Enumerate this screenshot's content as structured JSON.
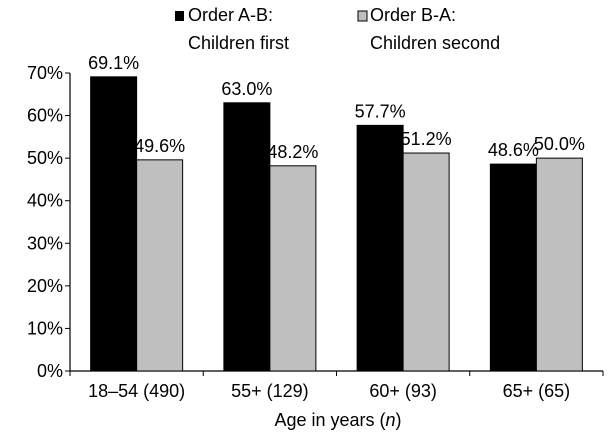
{
  "chart_data": {
    "type": "bar",
    "categories": [
      "18–54 (490)",
      "55+ (129)",
      "60+ (93)",
      "65+ (65)"
    ],
    "series": [
      {
        "name_line1": "Order A-B:",
        "name_line2": "Children first",
        "values": [
          69.1,
          63.0,
          57.7,
          48.6
        ],
        "labels": [
          "69.1%",
          "63.0%",
          "57.7%",
          "48.6%"
        ],
        "color": "#000000"
      },
      {
        "name_line1": "Order B-A:",
        "name_line2": "Children second",
        "values": [
          49.6,
          48.2,
          51.2,
          50.0
        ],
        "labels": [
          "49.6%",
          "48.2%",
          "51.2%",
          "50.0%"
        ],
        "color": "#bfbfbf"
      }
    ],
    "xlabel_prefix": "Age in years (",
    "xlabel_var": "n",
    "xlabel_suffix": ")",
    "ylabel": "",
    "ylim": [
      0,
      70
    ],
    "yticks": [
      "0%",
      "10%",
      "20%",
      "30%",
      "40%",
      "50%",
      "60%",
      "70%"
    ],
    "grid": false,
    "legend_position": "top"
  }
}
